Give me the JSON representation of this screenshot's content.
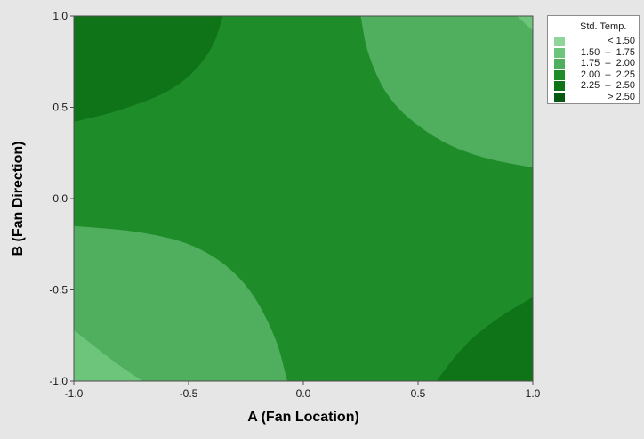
{
  "chart_data": {
    "type": "contour",
    "xlabel": "A (Fan Location)",
    "ylabel": "B (Fan Direction)",
    "xlim": [
      -1.0,
      1.0
    ],
    "ylim": [
      -1.0,
      1.0
    ],
    "x_ticks": [
      "-1.0",
      "-0.5",
      "0.0",
      "0.5",
      "1.0"
    ],
    "y_ticks": [
      "1.0",
      "0.5",
      "0.0",
      "-0.5",
      "-1.0"
    ],
    "grid": false,
    "legend_position": "top-right",
    "legend": {
      "title": "Std. Temp.",
      "entries": [
        {
          "label": "< 1.50",
          "color": "#8fd49a"
        },
        {
          "label": "1.50  –  1.75",
          "color": "#6cc57a"
        },
        {
          "label": "1.75  –  2.00",
          "color": "#4faf5e"
        },
        {
          "label": "2.00  –  2.25",
          "color": "#1f8c2a"
        },
        {
          "label": "2.25  –  2.50",
          "color": "#0f7318"
        },
        {
          "label": "> 2.50",
          "color": "#055a10"
        }
      ]
    },
    "regions": [
      {
        "level": "2.25 – 2.50",
        "corner": "top-left",
        "boundary": [
          [
            -1.0,
            0.42
          ],
          [
            -0.8,
            0.48
          ],
          [
            -0.55,
            0.6
          ],
          [
            -0.4,
            0.8
          ],
          [
            -0.35,
            1.0
          ]
        ]
      },
      {
        "level": "1.75 – 2.00",
        "corner": "top-right",
        "boundary": [
          [
            0.25,
            1.0
          ],
          [
            0.28,
            0.78
          ],
          [
            0.38,
            0.52
          ],
          [
            0.58,
            0.32
          ],
          [
            0.78,
            0.22
          ],
          [
            1.0,
            0.17
          ]
        ]
      },
      {
        "level": "1.50 – 1.75",
        "corner": "top-right",
        "boundary": [
          [
            0.93,
            1.0
          ],
          [
            1.0,
            0.92
          ]
        ]
      },
      {
        "level": "1.75 – 2.00",
        "corner": "bottom-left",
        "boundary": [
          [
            -1.0,
            -0.15
          ],
          [
            -0.7,
            -0.18
          ],
          [
            -0.45,
            -0.26
          ],
          [
            -0.25,
            -0.45
          ],
          [
            -0.12,
            -0.75
          ],
          [
            -0.07,
            -1.0
          ]
        ]
      },
      {
        "level": "1.50 – 1.75",
        "corner": "bottom-left",
        "boundary": [
          [
            -1.0,
            -0.72
          ],
          [
            -0.82,
            -0.9
          ],
          [
            -0.7,
            -1.0
          ]
        ]
      },
      {
        "level": "2.25 – 2.50",
        "corner": "bottom-right",
        "boundary": [
          [
            0.58,
            -1.0
          ],
          [
            0.7,
            -0.8
          ],
          [
            0.85,
            -0.65
          ],
          [
            1.0,
            -0.54
          ]
        ]
      }
    ],
    "base_level": "2.00 – 2.25"
  }
}
